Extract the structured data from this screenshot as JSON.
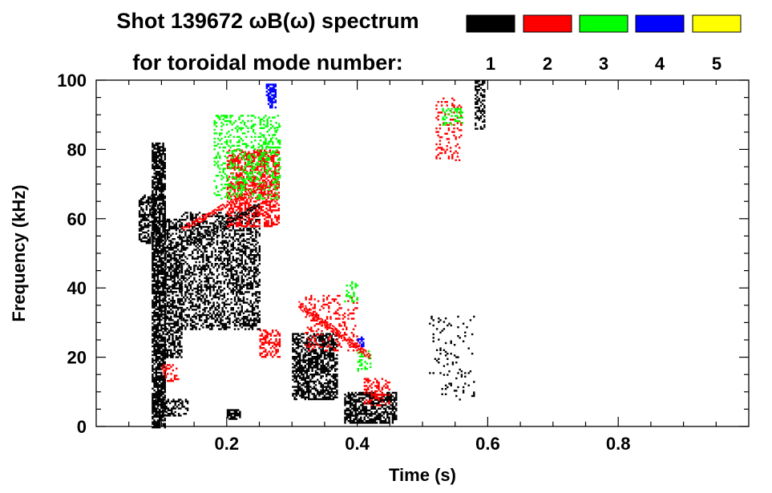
{
  "chart_data": {
    "type": "spectrogram",
    "title_line1": "Shot 139672 ωB(ω) spectrum",
    "title_line2": "for toroidal mode number:",
    "xlabel": "Time (s)",
    "ylabel": "Frequency (kHz)",
    "xlim": [
      0.0,
      1.0
    ],
    "ylim": [
      0,
      100
    ],
    "x_tick_labels": [
      "0.2",
      "0.4",
      "0.6",
      "0.8"
    ],
    "x_ticks": [
      0.2,
      0.4,
      0.6,
      0.8
    ],
    "y_tick_labels": [
      "0",
      "20",
      "40",
      "60",
      "80",
      "100"
    ],
    "y_ticks": [
      0,
      20,
      40,
      60,
      80,
      100
    ],
    "grid": false,
    "legend_placement": "top-right",
    "legend": [
      {
        "label": "1",
        "color": "#000000"
      },
      {
        "label": "2",
        "color": "#ff0000"
      },
      {
        "label": "3",
        "color": "#00ff00"
      },
      {
        "label": "4",
        "color": "#0000ff"
      },
      {
        "label": "5",
        "color": "#ffff00"
      }
    ],
    "regions": [
      {
        "n": 1,
        "color": "#000000",
        "t": [
          0.085,
          0.105
        ],
        "f": [
          0,
          82
        ],
        "dens": 0.75
      },
      {
        "n": 1,
        "color": "#000000",
        "t": [
          0.105,
          0.13
        ],
        "f": [
          20,
          60
        ],
        "dens": 0.55
      },
      {
        "n": 1,
        "color": "#000000",
        "t": [
          0.13,
          0.25
        ],
        "f": [
          28,
          62
        ],
        "dens": 0.45
      },
      {
        "n": 1,
        "color": "#000000",
        "t": [
          0.065,
          0.09
        ],
        "f": [
          53,
          67
        ],
        "dens": 0.5
      },
      {
        "n": 1,
        "color": "#000000",
        "t": [
          0.09,
          0.14
        ],
        "f": [
          3,
          8
        ],
        "dens": 0.45
      },
      {
        "n": 1,
        "color": "#000000",
        "t": [
          0.2,
          0.22
        ],
        "f": [
          2,
          5
        ],
        "dens": 0.7
      },
      {
        "n": 1,
        "color": "#000000",
        "t": [
          0.3,
          0.37
        ],
        "f": [
          8,
          27
        ],
        "dens": 0.6
      },
      {
        "n": 1,
        "color": "#000000",
        "t": [
          0.38,
          0.46
        ],
        "f": [
          1,
          10
        ],
        "dens": 0.65
      },
      {
        "n": 1,
        "color": "#000000",
        "t": [
          0.58,
          0.595
        ],
        "f": [
          86,
          100
        ],
        "dens": 0.5
      },
      {
        "n": 1,
        "color": "#000000",
        "t": [
          0.51,
          0.58
        ],
        "f": [
          8,
          32
        ],
        "dens": 0.08
      },
      {
        "n": 2,
        "color": "#ff0000",
        "t": [
          0.2,
          0.28
        ],
        "f": [
          58,
          80
        ],
        "dens": 0.5
      },
      {
        "n": 2,
        "color": "#ff0000",
        "t": [
          0.25,
          0.28
        ],
        "f": [
          20,
          28
        ],
        "dens": 0.5
      },
      {
        "n": 2,
        "color": "#ff0000",
        "t": [
          0.32,
          0.4
        ],
        "f": [
          22,
          38
        ],
        "dens": 0.2
      },
      {
        "n": 2,
        "color": "#ff0000",
        "t": [
          0.1,
          0.125
        ],
        "f": [
          13,
          18
        ],
        "dens": 0.25
      },
      {
        "n": 2,
        "color": "#ff0000",
        "t": [
          0.41,
          0.45
        ],
        "f": [
          6,
          14
        ],
        "dens": 0.35
      },
      {
        "n": 2,
        "color": "#ff0000",
        "t": [
          0.52,
          0.56
        ],
        "f": [
          77,
          95
        ],
        "dens": 0.2
      },
      {
        "n": 3,
        "color": "#00ff00",
        "t": [
          0.18,
          0.28
        ],
        "f": [
          66,
          90
        ],
        "dens": 0.25
      },
      {
        "n": 3,
        "color": "#00ff00",
        "t": [
          0.4,
          0.42
        ],
        "f": [
          16,
          22
        ],
        "dens": 0.4
      },
      {
        "n": 3,
        "color": "#00ff00",
        "t": [
          0.38,
          0.4
        ],
        "f": [
          36,
          42
        ],
        "dens": 0.25
      },
      {
        "n": 3,
        "color": "#00ff00",
        "t": [
          0.53,
          0.56
        ],
        "f": [
          87,
          92
        ],
        "dens": 0.35
      },
      {
        "n": 4,
        "color": "#0000ff",
        "t": [
          0.26,
          0.275
        ],
        "f": [
          92,
          99
        ],
        "dens": 0.7
      },
      {
        "n": 4,
        "color": "#0000ff",
        "t": [
          0.4,
          0.41
        ],
        "f": [
          23,
          26
        ],
        "dens": 0.6
      }
    ],
    "bands": [
      {
        "n": 2,
        "color": "#ff0000",
        "t": [
          0.13,
          0.26
        ],
        "f": [
          57,
          70
        ],
        "width": 3
      },
      {
        "n": 2,
        "color": "#ff0000",
        "t": [
          0.31,
          0.42
        ],
        "f": [
          35,
          20
        ],
        "width": 4
      },
      {
        "n": 1,
        "color": "#000000",
        "t": [
          0.14,
          0.25
        ],
        "f": [
          53,
          64
        ],
        "width": 3
      },
      {
        "n": 3,
        "color": "#00ff00",
        "t": [
          0.22,
          0.28
        ],
        "f": [
          68,
          87
        ],
        "width": 3
      }
    ]
  }
}
